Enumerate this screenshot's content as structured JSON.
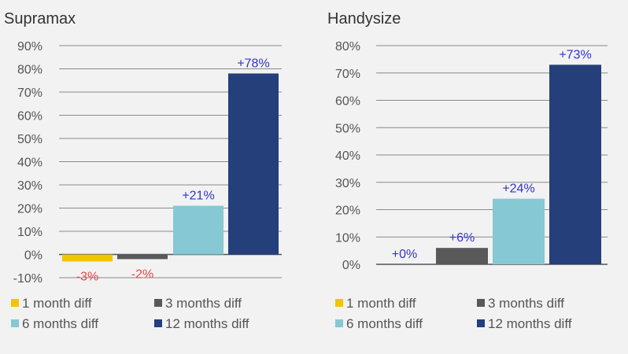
{
  "chart_data": [
    {
      "type": "bar",
      "title": "Supramax",
      "categories": [
        "1 month diff",
        "3 months diff",
        "6 months diff",
        "12 months diff"
      ],
      "values": [
        -3,
        -2,
        21,
        78
      ],
      "data_labels": [
        "-3%",
        "-2%",
        "+21%",
        "+78%"
      ],
      "colors": [
        "#f2c500",
        "#595959",
        "#86c8d3",
        "#243f7a"
      ],
      "label_colors": [
        "#e84545",
        "#e84545",
        "#3333cc",
        "#3333cc"
      ],
      "ylim": [
        -10,
        90
      ],
      "y_ticks": [
        -10,
        0,
        10,
        20,
        30,
        40,
        50,
        60,
        70,
        80,
        90
      ],
      "y_tick_labels": [
        "-10%",
        "0%",
        "10%",
        "20%",
        "30%",
        "40%",
        "50%",
        "60%",
        "70%",
        "80%",
        "90%"
      ],
      "grid": true,
      "legend": "bottom"
    },
    {
      "type": "bar",
      "title": "Handysize",
      "categories": [
        "1 month diff",
        "3 months diff",
        "6 months diff",
        "12 months diff"
      ],
      "values": [
        0,
        6,
        24,
        73
      ],
      "data_labels": [
        "+0%",
        "+6%",
        "+24%",
        "+73%"
      ],
      "colors": [
        "#f2c500",
        "#595959",
        "#86c8d3",
        "#243f7a"
      ],
      "label_colors": [
        "#3333cc",
        "#3333cc",
        "#3333cc",
        "#3333cc"
      ],
      "ylim": [
        0,
        80
      ],
      "y_ticks": [
        0,
        10,
        20,
        30,
        40,
        50,
        60,
        70,
        80
      ],
      "y_tick_labels": [
        "0%",
        "10%",
        "20%",
        "30%",
        "40%",
        "50%",
        "60%",
        "70%",
        "80%"
      ],
      "grid": true,
      "legend": "bottom"
    }
  ]
}
